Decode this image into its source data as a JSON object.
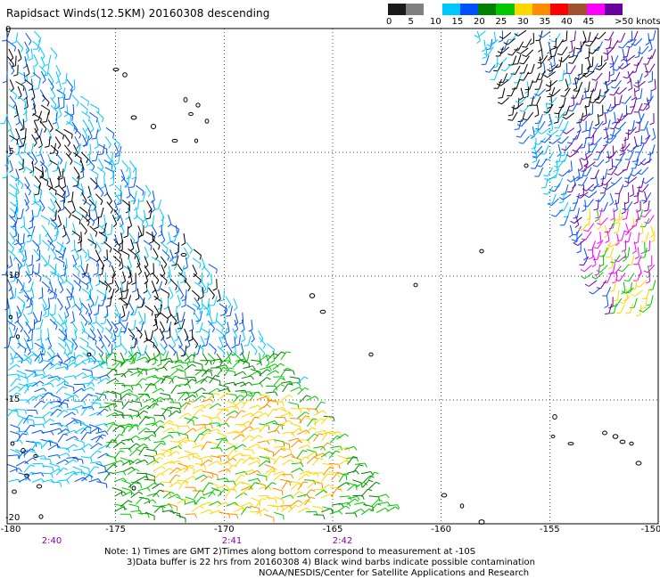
{
  "title": "Rapidsact Winds(12.5KM) 20160308 descending",
  "colorbar": {
    "units": ">50 knots",
    "ticks": [
      "0",
      "5",
      "10",
      "15",
      "20",
      "25",
      "30",
      "35",
      "40",
      "45"
    ],
    "colors": [
      "#1a1a1a",
      "#7f7f7f",
      "#ffffff",
      "#00c8ff",
      "#0050ff",
      "#008000",
      "#00c800",
      "#ffd700",
      "#ff8c00",
      "#ff0000",
      "#a0522d",
      "#ff00ff",
      "#6a00a0"
    ]
  },
  "x_axis_labels": [
    "-180",
    "-175",
    "-170",
    "-165",
    "-160",
    "-155",
    "-150"
  ],
  "y_axis_labels": [
    "0",
    "-5",
    "-10",
    "-15",
    "-20"
  ],
  "time_labels": [
    "2:40",
    "2:41",
    "2:42"
  ],
  "notes": [
    "Note: 1) Times are GMT 2)Times along bottom correspond to measurement at -10S",
    "3)Data buffer is 22 hrs from 20160308 4) Black wind barbs indicate possible contamination",
    "NOAA/NESDIS/Center for Satellite Applications and Research"
  ],
  "map": {
    "lon_range": [
      -180,
      -150
    ],
    "lat_range": [
      -20,
      0
    ],
    "grid": true
  }
}
